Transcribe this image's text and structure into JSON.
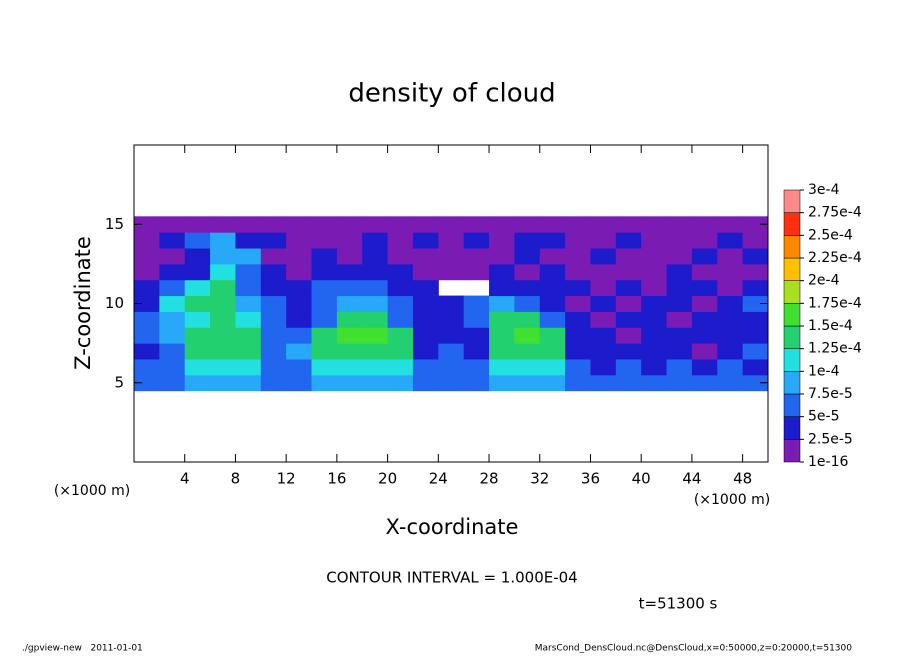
{
  "chart_data": {
    "type": "heatmap",
    "title": "density of cloud",
    "x_label": "X-coordinate",
    "y_label": "Z-coordinate",
    "x_unit": "(×1000 m)",
    "y_unit": "(×1000 m)",
    "xlim": [
      0,
      50
    ],
    "ylim": [
      0,
      20
    ],
    "xticks": [
      4,
      8,
      12,
      16,
      20,
      24,
      28,
      32,
      36,
      40,
      44,
      48
    ],
    "yticks": [
      5,
      10,
      15
    ],
    "x": [
      1,
      3,
      5,
      7,
      9,
      11,
      13,
      15,
      17,
      19,
      21,
      23,
      25,
      27,
      29,
      31,
      33,
      35,
      37,
      39,
      41,
      43,
      45,
      47,
      49
    ],
    "y": [
      5,
      6,
      7,
      8,
      9,
      10,
      11,
      12,
      13,
      14,
      15
    ],
    "z": [
      [
        5e-05,
        5e-05,
        7.5e-05,
        7.5e-05,
        7.5e-05,
        5e-05,
        5e-05,
        7.5e-05,
        7.5e-05,
        7.5e-05,
        7.5e-05,
        5e-05,
        5e-05,
        5e-05,
        7.5e-05,
        7.5e-05,
        7.5e-05,
        5e-05,
        5e-05,
        5e-05,
        5e-05,
        5e-05,
        5e-05,
        5e-05,
        5e-05
      ],
      [
        5e-05,
        5e-05,
        0.0001,
        0.0001,
        0.0001,
        5e-05,
        5e-05,
        0.0001,
        0.0001,
        0.0001,
        0.0001,
        5e-05,
        5e-05,
        5e-05,
        0.0001,
        0.0001,
        0.0001,
        5e-05,
        2.5e-05,
        5e-05,
        2.5e-05,
        5e-05,
        2.5e-05,
        5e-05,
        2.5e-05
      ],
      [
        2.5e-05,
        5e-05,
        0.000125,
        0.000125,
        0.000125,
        5e-05,
        7.5e-05,
        0.000125,
        0.000125,
        0.000125,
        0.000125,
        2.5e-05,
        5e-05,
        2.5e-05,
        0.000125,
        0.000125,
        0.000125,
        2.5e-05,
        2.5e-05,
        2.5e-05,
        2.5e-05,
        2.5e-05,
        1e-16,
        2.5e-05,
        5e-05
      ],
      [
        5e-05,
        7.5e-05,
        0.000125,
        0.000125,
        0.000125,
        5e-05,
        5e-05,
        0.000125,
        0.00015,
        0.00015,
        0.000125,
        2.5e-05,
        2.5e-05,
        2.5e-05,
        0.000125,
        0.00015,
        0.000125,
        2.5e-05,
        2.5e-05,
        1e-16,
        2.5e-05,
        2.5e-05,
        2.5e-05,
        2.5e-05,
        2.5e-05
      ],
      [
        5e-05,
        7.5e-05,
        0.0001,
        0.000125,
        0.0001,
        5e-05,
        2.5e-05,
        5e-05,
        0.000125,
        0.000125,
        5e-05,
        2.5e-05,
        2.5e-05,
        5e-05,
        0.000125,
        0.000125,
        5e-05,
        2.5e-05,
        1e-16,
        2.5e-05,
        2.5e-05,
        1e-16,
        2.5e-05,
        2.5e-05,
        2.5e-05
      ],
      [
        2.5e-05,
        0.0001,
        0.000125,
        0.000125,
        7.5e-05,
        5e-05,
        2.5e-05,
        5e-05,
        7.5e-05,
        7.5e-05,
        5e-05,
        2.5e-05,
        2.5e-05,
        5e-05,
        7.5e-05,
        5e-05,
        2.5e-05,
        1e-16,
        2.5e-05,
        1e-16,
        2.5e-05,
        2.5e-05,
        1e-16,
        2.5e-05,
        5e-05
      ],
      [
        2.5e-05,
        5e-05,
        0.0001,
        0.000125,
        5e-05,
        2.5e-05,
        2.5e-05,
        5e-05,
        5e-05,
        5e-05,
        2.5e-05,
        2.5e-05,
        null,
        null,
        2.5e-05,
        2.5e-05,
        2.5e-05,
        2.5e-05,
        1e-16,
        2.5e-05,
        1e-16,
        2.5e-05,
        2.5e-05,
        1e-16,
        2.5e-05
      ],
      [
        1e-16,
        2.5e-05,
        2.5e-05,
        0.0001,
        5e-05,
        2.5e-05,
        1e-16,
        2.5e-05,
        2.5e-05,
        2.5e-05,
        2.5e-05,
        1e-16,
        1e-16,
        1e-16,
        2.5e-05,
        1e-16,
        2.5e-05,
        1e-16,
        1e-16,
        1e-16,
        1e-16,
        2.5e-05,
        1e-16,
        1e-16,
        1e-16
      ],
      [
        1e-16,
        1e-16,
        2.5e-05,
        7.5e-05,
        7.5e-05,
        1e-16,
        1e-16,
        2.5e-05,
        1e-16,
        2.5e-05,
        1e-16,
        1e-16,
        1e-16,
        1e-16,
        1e-16,
        2.5e-05,
        1e-16,
        1e-16,
        2.5e-05,
        1e-16,
        1e-16,
        1e-16,
        2.5e-05,
        1e-16,
        2.5e-05
      ],
      [
        1e-16,
        2.5e-05,
        5e-05,
        7.5e-05,
        2.5e-05,
        2.5e-05,
        1e-16,
        1e-16,
        1e-16,
        2.5e-05,
        1e-16,
        2.5e-05,
        1e-16,
        2.5e-05,
        1e-16,
        2.5e-05,
        2.5e-05,
        1e-16,
        1e-16,
        2.5e-05,
        1e-16,
        1e-16,
        1e-16,
        2.5e-05,
        1e-16
      ],
      [
        1e-16,
        1e-16,
        1e-16,
        1e-16,
        1e-16,
        1e-16,
        1e-16,
        1e-16,
        1e-16,
        1e-16,
        1e-16,
        1e-16,
        1e-16,
        1e-16,
        1e-16,
        1e-16,
        1e-16,
        1e-16,
        1e-16,
        1e-16,
        1e-16,
        1e-16,
        1e-16,
        1e-16,
        1e-16
      ]
    ],
    "levels": [
      {
        "value": 1e-16,
        "label": "1e-16"
      },
      {
        "value": 2.5e-05,
        "label": "2.5e-5"
      },
      {
        "value": 5e-05,
        "label": "5e-5"
      },
      {
        "value": 7.5e-05,
        "label": "7.5e-5"
      },
      {
        "value": 0.0001,
        "label": "1e-4"
      },
      {
        "value": 0.000125,
        "label": "1.25e-4"
      },
      {
        "value": 0.00015,
        "label": "1.5e-4"
      },
      {
        "value": 0.000175,
        "label": "1.75e-4"
      },
      {
        "value": 0.0002,
        "label": "2e-4"
      },
      {
        "value": 0.000225,
        "label": "2.25e-4"
      },
      {
        "value": 0.00025,
        "label": "2.5e-4"
      },
      {
        "value": 0.000275,
        "label": "2.75e-4"
      },
      {
        "value": 0.0003,
        "label": "3e-4"
      }
    ],
    "colors": [
      "#7a1cb4",
      "#1c1ccc",
      "#2266f0",
      "#28a8f8",
      "#22e0e0",
      "#22d070",
      "#40e030",
      "#a8e020",
      "#ffc000",
      "#ff8800",
      "#ff3010",
      "#ff8888"
    ],
    "annotation": "CONTOUR INTERVAL = 1.000E-04",
    "time_label": "t=51300 s",
    "footer_left": "./gpview-new   2011-01-01",
    "footer_right": "MarsCond_DensCloud.nc@DensCloud,x=0:50000,z=0:20000,t=51300"
  }
}
